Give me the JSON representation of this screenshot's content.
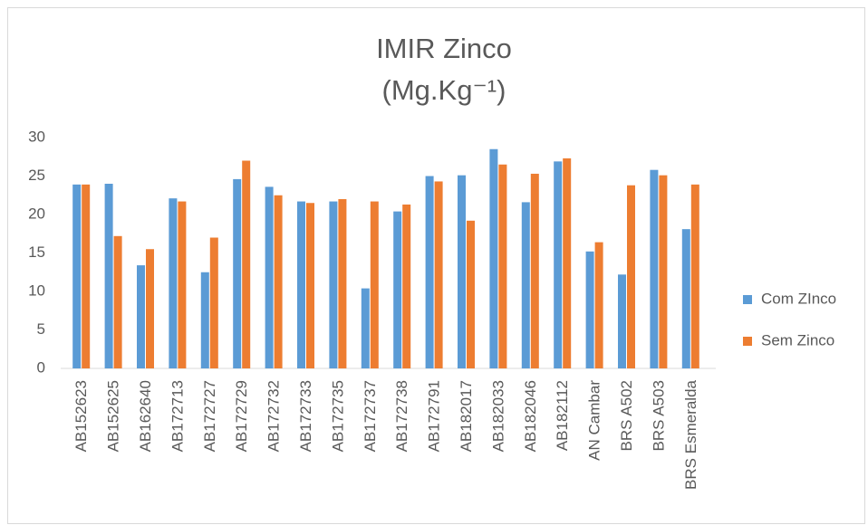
{
  "chart_data": {
    "type": "bar",
    "title": "IMIR Zinco",
    "subtitle": "(Mg.Kg⁻¹)",
    "categories": [
      "AB152623",
      "AB152625",
      "AB162640",
      "AB172713",
      "AB172727",
      "AB172729",
      "AB172732",
      "AB172733",
      "AB172735",
      "AB172737",
      "AB172738",
      "AB172791",
      "AB182017",
      "AB182033",
      "AB182046",
      "AB182112",
      "AN Cambar",
      "BRS A502",
      "BRS A503",
      "BRS Esmeralda"
    ],
    "series": [
      {
        "name": "Com ZInco",
        "color": "#5b9bd5",
        "values": [
          23.9,
          24.0,
          13.4,
          22.1,
          12.5,
          24.6,
          23.6,
          21.7,
          21.7,
          10.4,
          20.4,
          25.0,
          25.1,
          28.5,
          21.6,
          26.9,
          15.2,
          12.2,
          25.8,
          18.1
        ]
      },
      {
        "name": "Sem Zinco",
        "color": "#ed7d31",
        "values": [
          23.9,
          17.2,
          15.5,
          21.7,
          17.0,
          27.0,
          22.5,
          21.5,
          22.0,
          21.7,
          21.3,
          24.3,
          19.2,
          26.5,
          25.3,
          27.3,
          16.4,
          23.8,
          25.1,
          23.9
        ]
      }
    ],
    "ylim": [
      0,
      30
    ],
    "yticks": [
      0,
      5,
      10,
      15,
      20,
      25,
      30
    ],
    "grid": false,
    "legend": "right"
  }
}
